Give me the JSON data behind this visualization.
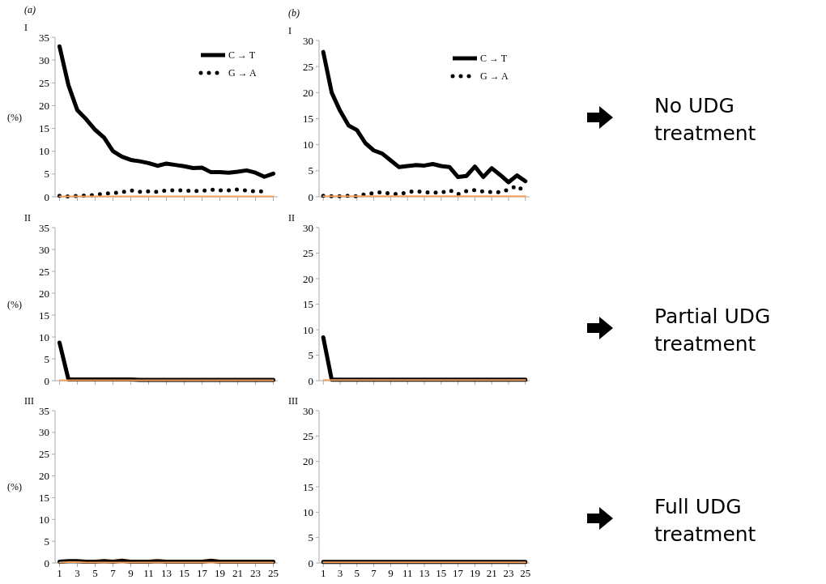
{
  "chart_data": [
    {
      "type": "line",
      "title": "(a)",
      "subtitle": "I",
      "ylabel": "(%)",
      "x": [
        1,
        2,
        3,
        4,
        5,
        6,
        7,
        8,
        9,
        10,
        11,
        12,
        13,
        14,
        15,
        16,
        17,
        18,
        19,
        20,
        21,
        22,
        23,
        24,
        25
      ],
      "xlim": [
        0.5,
        25.5
      ],
      "xticks": [
        1,
        3,
        5,
        7,
        9,
        11,
        13,
        15,
        17,
        19,
        21,
        23,
        25
      ],
      "ylim": [
        0,
        35
      ],
      "yticks": [
        0,
        5,
        10,
        15,
        20,
        25,
        30,
        35
      ],
      "tick_labels": "y",
      "legend": "top right",
      "series": [
        {
          "name": "C → T",
          "color": "#000000",
          "line_style": "solid",
          "values": [
            33,
            24.5,
            19,
            17,
            14.7,
            13,
            10,
            8.8,
            8.1,
            7.8,
            7.4,
            6.8,
            7.3,
            7,
            6.7,
            6.3,
            6.4,
            5.4,
            5.4,
            5.3,
            5.5,
            5.8,
            5.3,
            4.4,
            5.1
          ]
        },
        {
          "name": "G → A",
          "color": "#000000",
          "line_style": "dotted",
          "values": [
            0.2,
            0.1,
            0.2,
            0.3,
            0.4,
            0.7,
            0.8,
            1,
            1.4,
            1.1,
            1.2,
            1.1,
            1.4,
            1.4,
            1.4,
            1.3,
            1.3,
            1.6,
            1.4,
            1.4,
            1.6,
            1.4,
            1.2,
            1.2,
            null
          ]
        },
        {
          "color": "#f4a460",
          "line_style": "solid",
          "values": [
            0.1,
            0.1,
            0.1,
            0.1,
            0.1,
            0.1,
            0.1,
            0.1,
            0.1,
            0.1,
            0.1,
            0.1,
            0.1,
            0.1,
            0.1,
            0.1,
            0.1,
            0.1,
            0.1,
            0.1,
            0.1,
            0.1,
            0.1,
            0.1,
            0.1
          ]
        }
      ]
    },
    {
      "type": "line",
      "title": "(b)",
      "subtitle": "I",
      "x": [
        1,
        2,
        3,
        4,
        5,
        6,
        7,
        8,
        9,
        10,
        11,
        12,
        13,
        14,
        15,
        16,
        17,
        18,
        19,
        20,
        21,
        22,
        23,
        24,
        25
      ],
      "xlim": [
        0.5,
        25.5
      ],
      "xticks": [
        1,
        3,
        5,
        7,
        9,
        11,
        13,
        15,
        17,
        19,
        21,
        23,
        25
      ],
      "ylim": [
        0,
        30
      ],
      "yticks": [
        0,
        5,
        10,
        15,
        20,
        25,
        30
      ],
      "tick_labels": "y",
      "legend": "top right",
      "series": [
        {
          "name": "C → T",
          "color": "#000000",
          "line_style": "solid",
          "values": [
            27.8,
            20,
            16.5,
            13.7,
            12.8,
            10.3,
            8.9,
            8.3,
            7,
            5.7,
            5.9,
            6.1,
            6,
            6.3,
            5.9,
            5.7,
            3.8,
            4,
            5.8,
            3.8,
            5.5,
            4.2,
            2.8,
            4.1,
            3
          ]
        },
        {
          "name": "G → A",
          "color": "#000000",
          "line_style": "dotted",
          "values": [
            0.2,
            0.1,
            0.1,
            0.2,
            0.1,
            0.5,
            0.7,
            0.9,
            0.6,
            0.5,
            0.9,
            1.1,
            0.9,
            0.8,
            0.8,
            1.3,
            0.5,
            1.1,
            1.3,
            1,
            0.9,
            0.9,
            1.4,
            2.1,
            0.9
          ]
        },
        {
          "color": "#f4a460",
          "line_style": "solid",
          "values": [
            0.1,
            0.1,
            0.1,
            0.1,
            0.1,
            0.1,
            0.1,
            0.1,
            0.1,
            0.1,
            0.1,
            0.1,
            0.1,
            0.1,
            0.1,
            0.1,
            0.1,
            0.1,
            0.1,
            0.1,
            0.1,
            0.1,
            0.1,
            0.1,
            0.1
          ]
        }
      ]
    },
    {
      "type": "line",
      "subtitle": "II",
      "ylabel": "(%)",
      "x": [
        1,
        2,
        3,
        4,
        5,
        6,
        7,
        8,
        9,
        10,
        11,
        12,
        13,
        14,
        15,
        16,
        17,
        18,
        19,
        20,
        21,
        22,
        23,
        24,
        25
      ],
      "xlim": [
        0.5,
        25.5
      ],
      "xticks": [
        1,
        3,
        5,
        7,
        9,
        11,
        13,
        15,
        17,
        19,
        21,
        23,
        25
      ],
      "ylim": [
        0,
        35
      ],
      "yticks": [
        0,
        5,
        10,
        15,
        20,
        25,
        30,
        35
      ],
      "tick_labels": "y",
      "series": [
        {
          "color": "#000000",
          "line_style": "solid",
          "values": [
            8.7,
            0.3,
            0.3,
            0.3,
            0.3,
            0.3,
            0.3,
            0.3,
            0.3,
            0.2,
            0.2,
            0.2,
            0.2,
            0.2,
            0.2,
            0.2,
            0.2,
            0.2,
            0.2,
            0.2,
            0.2,
            0.2,
            0.2,
            0.2,
            0.2
          ]
        },
        {
          "color": "#f4a460",
          "line_style": "solid",
          "values": [
            0.1,
            0.1,
            0.1,
            0.1,
            0.1,
            0.1,
            0.1,
            0.1,
            0.1,
            0.1,
            0.1,
            0.1,
            0.1,
            0.1,
            0.1,
            0.1,
            0.1,
            0.1,
            0.1,
            0.1,
            0.1,
            0.1,
            0.1,
            0.1,
            0.1
          ]
        }
      ]
    },
    {
      "type": "line",
      "subtitle": "II",
      "x": [
        1,
        2,
        3,
        4,
        5,
        6,
        7,
        8,
        9,
        10,
        11,
        12,
        13,
        14,
        15,
        16,
        17,
        18,
        19,
        20,
        21,
        22,
        23,
        24,
        25
      ],
      "xlim": [
        0.5,
        25.5
      ],
      "xticks": [
        1,
        3,
        5,
        7,
        9,
        11,
        13,
        15,
        17,
        19,
        21,
        23,
        25
      ],
      "ylim": [
        0,
        30
      ],
      "yticks": [
        0,
        5,
        10,
        15,
        20,
        25,
        30
      ],
      "tick_labels": "y",
      "series": [
        {
          "color": "#000000",
          "line_style": "solid",
          "values": [
            8.5,
            0.2,
            0.2,
            0.2,
            0.2,
            0.2,
            0.2,
            0.2,
            0.2,
            0.2,
            0.2,
            0.2,
            0.2,
            0.2,
            0.2,
            0.2,
            0.2,
            0.2,
            0.2,
            0.2,
            0.2,
            0.2,
            0.2,
            0.2,
            0.2
          ]
        },
        {
          "color": "#f4a460",
          "line_style": "solid",
          "values": [
            0.1,
            0.1,
            0.1,
            0.1,
            0.1,
            0.1,
            0.1,
            0.1,
            0.1,
            0.1,
            0.1,
            0.1,
            0.1,
            0.1,
            0.1,
            0.1,
            0.1,
            0.1,
            0.1,
            0.1,
            0.1,
            0.1,
            0.1,
            0.1,
            0.1
          ]
        }
      ]
    },
    {
      "type": "line",
      "subtitle": "III",
      "ylabel": "(%)",
      "x": [
        1,
        2,
        3,
        4,
        5,
        6,
        7,
        8,
        9,
        10,
        11,
        12,
        13,
        14,
        15,
        16,
        17,
        18,
        19,
        20,
        21,
        22,
        23,
        24,
        25
      ],
      "xlim": [
        0.5,
        25.5
      ],
      "xticks": [
        1,
        3,
        5,
        7,
        9,
        11,
        13,
        15,
        17,
        19,
        21,
        23,
        25
      ],
      "ylim": [
        0,
        35
      ],
      "yticks": [
        0,
        5,
        10,
        15,
        20,
        25,
        30,
        35
      ],
      "series": [
        {
          "color": "#000000",
          "line_style": "solid",
          "values": [
            0.3,
            0.4,
            0.4,
            0.3,
            0.3,
            0.4,
            0.3,
            0.5,
            0.3,
            0.3,
            0.3,
            0.4,
            0.3,
            0.3,
            0.3,
            0.3,
            0.3,
            0.5,
            0.3,
            0.3,
            0.3,
            0.3,
            0.3,
            0.3,
            0.3
          ]
        },
        {
          "color": "#f4a460",
          "line_style": "solid",
          "values": [
            0.1,
            0.2,
            0.2,
            0.1,
            0.1,
            0.1,
            0.1,
            0.1,
            0.1,
            0.1,
            0.1,
            0.1,
            0.1,
            0.1,
            0.1,
            0.1,
            0.1,
            0.1,
            0.1,
            0.1,
            0.1,
            0.1,
            0.1,
            0.1,
            0.1
          ]
        }
      ]
    },
    {
      "type": "line",
      "subtitle": "III",
      "x": [
        1,
        2,
        3,
        4,
        5,
        6,
        7,
        8,
        9,
        10,
        11,
        12,
        13,
        14,
        15,
        16,
        17,
        18,
        19,
        20,
        21,
        22,
        23,
        24,
        25
      ],
      "xlim": [
        0.5,
        25.5
      ],
      "xticks": [
        1,
        3,
        5,
        7,
        9,
        11,
        13,
        15,
        17,
        19,
        21,
        23,
        25
      ],
      "ylim": [
        0,
        30
      ],
      "yticks": [
        0,
        5,
        10,
        15,
        20,
        25,
        30
      ],
      "series": [
        {
          "color": "#000000",
          "line_style": "solid",
          "values": [
            0.2,
            0.2,
            0.2,
            0.2,
            0.2,
            0.2,
            0.2,
            0.2,
            0.2,
            0.2,
            0.2,
            0.2,
            0.2,
            0.2,
            0.2,
            0.2,
            0.2,
            0.2,
            0.2,
            0.2,
            0.2,
            0.2,
            0.2,
            0.2,
            0.2
          ]
        },
        {
          "color": "#f4a460",
          "line_style": "solid",
          "values": [
            0.1,
            0.1,
            0.1,
            0.1,
            0.1,
            0.1,
            0.1,
            0.1,
            0.1,
            0.1,
            0.1,
            0.1,
            0.1,
            0.1,
            0.1,
            0.1,
            0.1,
            0.1,
            0.1,
            0.1,
            0.1,
            0.1,
            0.1,
            0.1,
            0.1
          ]
        }
      ]
    },
    {
      "type": "other",
      "annotations": [
        "No UDG treatment",
        "Partial UDG treatment",
        "Full UDG treatment"
      ]
    }
  ]
}
